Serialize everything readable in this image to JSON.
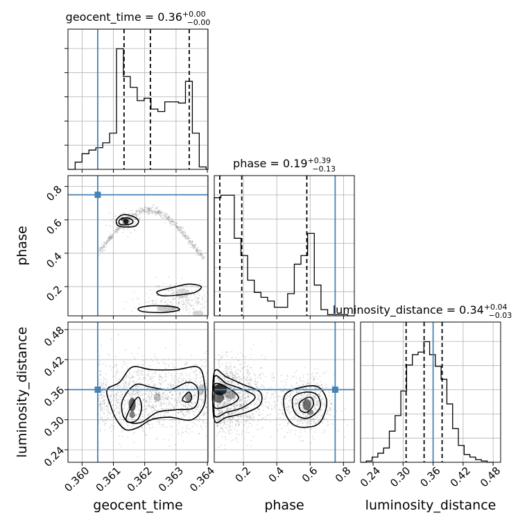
{
  "chart_data": {
    "type": "corner",
    "parameters": [
      "geocent_time",
      "phase",
      "luminosity_distance"
    ],
    "truth_color": "#4682b4",
    "truths": {
      "geocent_time": 0.3605,
      "phase": 0.75,
      "luminosity_distance": 0.36
    },
    "ranges": {
      "geocent_time": [
        0.35955,
        0.36402
      ],
      "phase": [
        0.025,
        0.865
      ],
      "luminosity_distance": [
        0.215,
        0.495
      ]
    },
    "ticks": {
      "geocent_time": {
        "values": [
          0.36,
          0.361,
          0.362,
          0.363,
          0.364
        ],
        "labels": [
          "0.360",
          "0.361",
          "0.362",
          "0.363",
          "0.364"
        ]
      },
      "phase": {
        "values": [
          0.2,
          0.4,
          0.6,
          0.8
        ],
        "labels": [
          "0.2",
          "0.4",
          "0.6",
          "0.8"
        ]
      },
      "luminosity_distance": {
        "values": [
          0.24,
          0.3,
          0.36,
          0.42,
          0.48
        ],
        "labels": [
          "0.24",
          "0.30",
          "0.36",
          "0.42",
          "0.48"
        ]
      }
    },
    "titles": {
      "geocent_time": {
        "text": "geocent_time = 0.36",
        "sup": "+0.00",
        "sub": "−0.00"
      },
      "phase": {
        "text": "phase = 0.19",
        "sup": "+0.39",
        "sub": "−0.13"
      },
      "luminosity_distance": {
        "text": "luminosity_distance = 0.34",
        "sup": "+0.04",
        "sub": "−0.03"
      }
    },
    "quantiles": {
      "geocent_time": [
        0.36134,
        0.36218,
        0.36342
      ],
      "phase": [
        0.058,
        0.19,
        0.58
      ],
      "luminosity_distance": [
        0.306,
        0.342,
        0.378
      ]
    },
    "marginals": {
      "geocent_time": {
        "edges": [
          0.35955,
          0.35978,
          0.36,
          0.36022,
          0.36044,
          0.36066,
          0.36088,
          0.3611,
          0.36132,
          0.36154,
          0.36176,
          0.36198,
          0.3622,
          0.36242,
          0.36264,
          0.36286,
          0.36308,
          0.3633,
          0.36352,
          0.36374,
          0.36396,
          0.36402
        ],
        "values": [
          0.0,
          0.06,
          0.13,
          0.16,
          0.18,
          0.22,
          0.3,
          1.0,
          0.77,
          0.68,
          0.57,
          0.59,
          0.5,
          0.48,
          0.56,
          0.56,
          0.55,
          0.73,
          0.3,
          0.02,
          0.0
        ]
      },
      "phase": {
        "edges": [
          0.025,
          0.065,
          0.105,
          0.145,
          0.185,
          0.225,
          0.265,
          0.305,
          0.345,
          0.385,
          0.425,
          0.465,
          0.505,
          0.545,
          0.585,
          0.625,
          0.665,
          0.705,
          0.745,
          0.785,
          0.825,
          0.865
        ],
        "values": [
          0.96,
          0.98,
          0.98,
          0.63,
          0.49,
          0.29,
          0.19,
          0.15,
          0.12,
          0.07,
          0.07,
          0.18,
          0.42,
          0.49,
          0.67,
          0.25,
          0.05,
          0.01,
          0.01,
          0.01,
          0.0
        ]
      },
      "luminosity_distance": {
        "edges": [
          0.215,
          0.2265,
          0.238,
          0.2495,
          0.261,
          0.2725,
          0.284,
          0.2955,
          0.307,
          0.3185,
          0.33,
          0.3415,
          0.353,
          0.3645,
          0.376,
          0.3875,
          0.399,
          0.4105,
          0.422,
          0.4335,
          0.445,
          0.4565,
          0.468,
          0.4795
        ],
        "values": [
          0.0,
          0.01,
          0.04,
          0.07,
          0.11,
          0.24,
          0.36,
          0.55,
          0.75,
          0.83,
          0.85,
          0.93,
          0.83,
          0.74,
          0.64,
          0.45,
          0.26,
          0.13,
          0.06,
          0.04,
          0.02,
          0.01,
          0.0
        ]
      }
    },
    "contours_2d": [
      {
        "x": "geocent_time",
        "y": "phase",
        "levels": [
          [
            [
              0.36115,
              0.565
            ],
            [
              0.3614,
              0.557
            ],
            [
              0.3617,
              0.563
            ],
            [
              0.3618,
              0.595
            ],
            [
              0.3616,
              0.623
            ],
            [
              0.3613,
              0.63
            ],
            [
              0.3611,
              0.6
            ]
          ],
          [
            [
              0.3612,
              0.575
            ],
            [
              0.3614,
              0.57
            ],
            [
              0.3616,
              0.58
            ],
            [
              0.3616,
              0.6
            ],
            [
              0.3614,
              0.612
            ],
            [
              0.3612,
              0.6
            ]
          ],
          [
            [
              0.36256,
              0.145
            ],
            [
              0.3631,
              0.15
            ],
            [
              0.3636,
              0.165
            ],
            [
              0.3638,
              0.2
            ],
            [
              0.3634,
              0.215
            ],
            [
              0.3629,
              0.195
            ],
            [
              0.3624,
              0.17
            ]
          ],
          [
            [
              0.36195,
              0.05
            ],
            [
              0.3626,
              0.045
            ],
            [
              0.3631,
              0.06
            ],
            [
              0.3629,
              0.08
            ],
            [
              0.3622,
              0.085
            ],
            [
              0.3618,
              0.07
            ]
          ]
        ]
      },
      {
        "x": "geocent_time",
        "y": "luminosity_distance",
        "levels": [
          [
            [
              0.3608,
              0.36
            ],
            [
              0.3612,
              0.375
            ],
            [
              0.3616,
              0.405
            ],
            [
              0.3622,
              0.4
            ],
            [
              0.363,
              0.4
            ],
            [
              0.3637,
              0.405
            ],
            [
              0.3639,
              0.375
            ],
            [
              0.3639,
              0.33
            ],
            [
              0.3635,
              0.3
            ],
            [
              0.3628,
              0.305
            ],
            [
              0.3622,
              0.3
            ],
            [
              0.3618,
              0.285
            ],
            [
              0.3614,
              0.28
            ],
            [
              0.3611,
              0.3
            ],
            [
              0.3609,
              0.33
            ]
          ],
          [
            [
              0.3613,
              0.34
            ],
            [
              0.3617,
              0.37
            ],
            [
              0.3622,
              0.365
            ],
            [
              0.3628,
              0.36
            ],
            [
              0.3634,
              0.375
            ],
            [
              0.3637,
              0.36
            ],
            [
              0.3636,
              0.325
            ],
            [
              0.363,
              0.32
            ],
            [
              0.3624,
              0.315
            ],
            [
              0.3619,
              0.295
            ],
            [
              0.3615,
              0.295
            ],
            [
              0.3613,
              0.31
            ]
          ],
          [
            [
              0.3614,
              0.3
            ],
            [
              0.3616,
              0.33
            ],
            [
              0.3618,
              0.345
            ],
            [
              0.3619,
              0.325
            ],
            [
              0.3618,
              0.303
            ],
            [
              0.3616,
              0.295
            ]
          ],
          [
            [
              0.3632,
              0.34
            ],
            [
              0.3634,
              0.355
            ],
            [
              0.3635,
              0.345
            ],
            [
              0.3634,
              0.335
            ]
          ]
        ]
      },
      {
        "x": "phase",
        "y": "luminosity_distance",
        "levels": [
          [
            [
              0.025,
              0.395
            ],
            [
              0.1,
              0.385
            ],
            [
              0.2,
              0.37
            ],
            [
              0.3,
              0.355
            ],
            [
              0.3,
              0.33
            ],
            [
              0.22,
              0.315
            ],
            [
              0.1,
              0.305
            ],
            [
              0.025,
              0.3
            ]
          ],
          [
            [
              0.025,
              0.385
            ],
            [
              0.1,
              0.372
            ],
            [
              0.2,
              0.36
            ],
            [
              0.27,
              0.345
            ],
            [
              0.2,
              0.325
            ],
            [
              0.1,
              0.315
            ],
            [
              0.025,
              0.31
            ]
          ],
          [
            [
              0.025,
              0.37
            ],
            [
              0.1,
              0.365
            ],
            [
              0.17,
              0.345
            ],
            [
              0.12,
              0.33
            ],
            [
              0.025,
              0.325
            ]
          ],
          [
            [
              0.45,
              0.35
            ],
            [
              0.55,
              0.365
            ],
            [
              0.65,
              0.365
            ],
            [
              0.7,
              0.335
            ],
            [
              0.66,
              0.295
            ],
            [
              0.58,
              0.285
            ],
            [
              0.5,
              0.29
            ],
            [
              0.45,
              0.315
            ]
          ],
          [
            [
              0.5,
              0.345
            ],
            [
              0.57,
              0.355
            ],
            [
              0.64,
              0.35
            ],
            [
              0.66,
              0.325
            ],
            [
              0.6,
              0.305
            ],
            [
              0.54,
              0.305
            ],
            [
              0.5,
              0.32
            ]
          ],
          [
            [
              0.54,
              0.335
            ],
            [
              0.6,
              0.345
            ],
            [
              0.62,
              0.33
            ],
            [
              0.58,
              0.315
            ],
            [
              0.54,
              0.32
            ]
          ]
        ]
      }
    ],
    "xlabels": [
      "geocent_time",
      "phase",
      "luminosity_distance"
    ],
    "ylabels": [
      "phase",
      "luminosity_distance"
    ]
  }
}
